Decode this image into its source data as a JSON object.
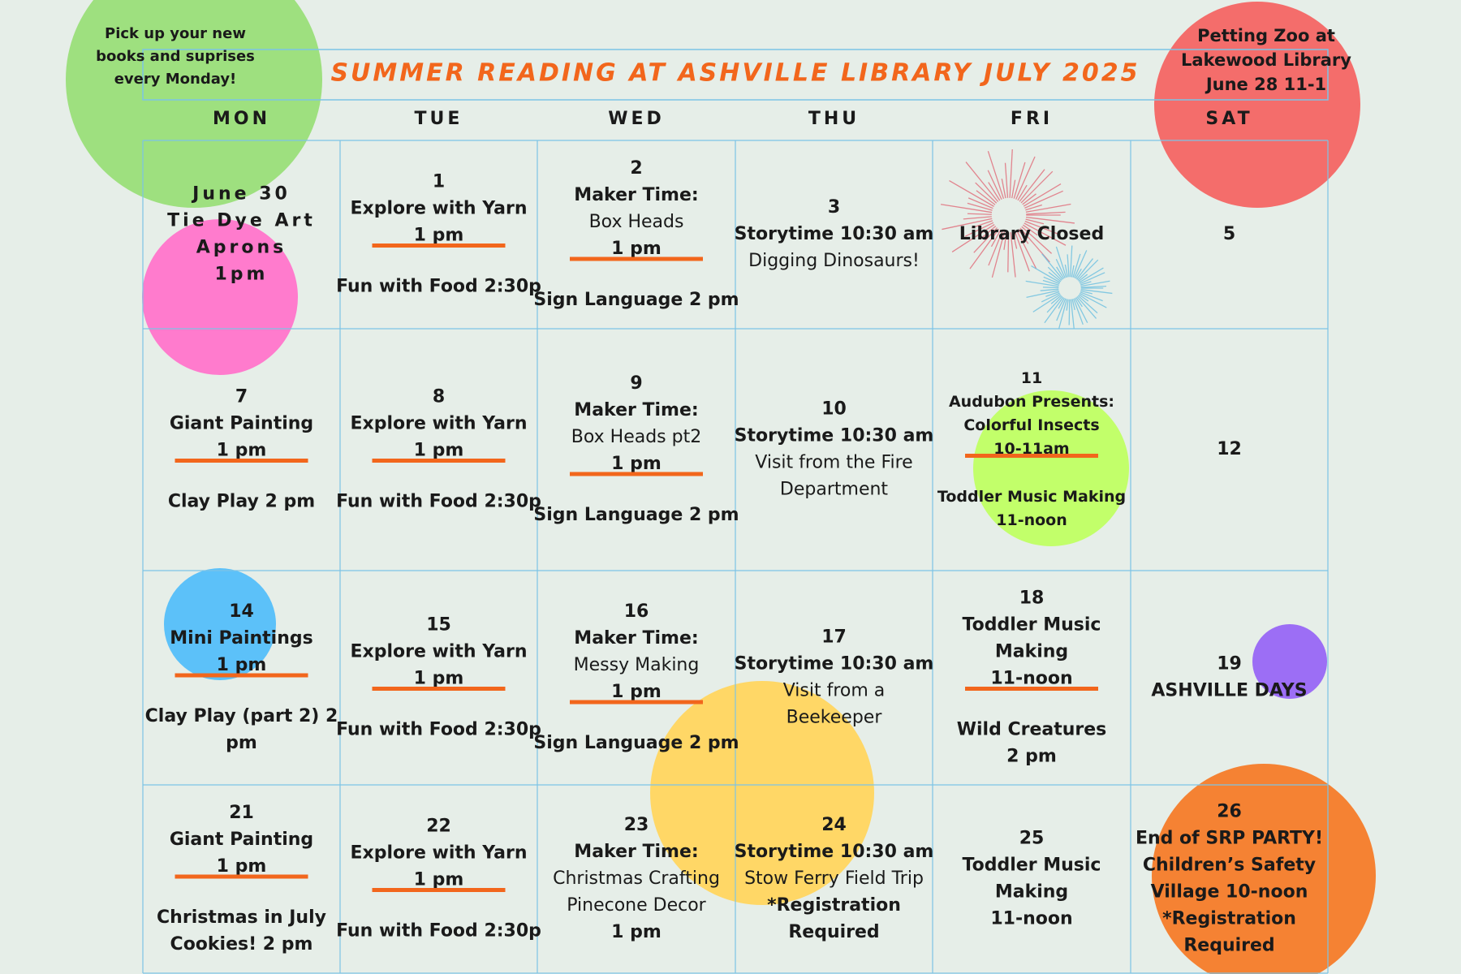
{
  "header": {
    "title": "SUMMER READING AT ASHVILLE LIBRARY JULY 2025"
  },
  "notes": {
    "left": [
      "Pick up your new",
      "books and suprises",
      "every Monday!"
    ],
    "right": [
      "Petting Zoo at",
      "Lakewood Library",
      "June 28 11-1"
    ]
  },
  "calendar": {
    "days": [
      "MON",
      "TUE",
      "WED",
      "THU",
      "FRI",
      "SAT"
    ],
    "rows": [
      [
        [
          [
            "June 30",
            "Tie Dye Art",
            "Aprons",
            "1pm"
          ]
        ],
        [
          [
            "1",
            "Explore with Yarn",
            "1 pm"
          ],
          [
            "Fun with Food 2:30p"
          ]
        ],
        [
          [
            "2",
            "Maker Time:",
            "Box Heads",
            "1 pm"
          ],
          [
            "Sign Language 2 pm"
          ]
        ],
        [
          [
            "3",
            "Storytime 10:30 am",
            "Digging Dinosaurs!"
          ]
        ],
        [
          [
            "Library Closed"
          ]
        ],
        [
          [
            "5"
          ]
        ]
      ],
      [
        [
          [
            "7",
            "Giant Painting",
            "1 pm"
          ],
          [
            "Clay Play  2 pm"
          ]
        ],
        [
          [
            "8",
            "Explore with Yarn",
            "1 pm"
          ],
          [
            "Fun with Food 2:30p"
          ]
        ],
        [
          [
            "9",
            "Maker Time:",
            "Box Heads pt2",
            "1 pm"
          ],
          [
            "Sign Language 2 pm"
          ]
        ],
        [
          [
            "10",
            "Storytime 10:30 am",
            "Visit from the Fire",
            "Department"
          ]
        ],
        [
          [
            "11",
            "Audubon Presents:",
            "Colorful Insects",
            "10-11am"
          ],
          [
            "Toddler Music Making",
            "11-noon"
          ]
        ],
        [
          [
            "12"
          ]
        ]
      ],
      [
        [
          [
            "14",
            "Mini Paintings",
            "1 pm"
          ],
          [
            "Clay Play (part 2) 2",
            "pm"
          ]
        ],
        [
          [
            "15",
            "Explore with Yarn",
            "1 pm"
          ],
          [
            "Fun with Food 2:30p"
          ]
        ],
        [
          [
            "16",
            "Maker Time:",
            "Messy Making",
            "1 pm"
          ],
          [
            "Sign Language 2 pm"
          ]
        ],
        [
          [
            "17",
            "Storytime 10:30 am",
            "Visit from a",
            "Beekeeper"
          ]
        ],
        [
          [
            "18",
            "Toddler Music",
            "Making",
            "11-noon"
          ],
          [
            "Wild Creatures",
            "2 pm"
          ]
        ],
        [
          [
            "19",
            "ASHVILLE DAYS"
          ]
        ]
      ],
      [
        [
          [
            "21",
            "Giant Painting",
            "1 pm"
          ],
          [
            "Christmas in July",
            "Cookies! 2 pm"
          ]
        ],
        [
          [
            "22",
            "Explore with Yarn",
            "1 pm"
          ],
          [
            "Fun with Food 2:30p"
          ]
        ],
        [
          [
            "23",
            "Maker Time:",
            "Christmas Crafting",
            "Pinecone Decor",
            "1 pm"
          ]
        ],
        [
          [
            "24",
            "Storytime 10:30 am",
            "Stow Ferry Field Trip",
            "*Registration",
            "Required"
          ]
        ],
        [
          [
            "25",
            "Toddler Music",
            "Making",
            "11-noon"
          ]
        ],
        [
          [
            "26",
            "End of SRP PARTY!",
            "Children’s Safety",
            "Village 10-noon",
            "*Registration",
            "Required"
          ]
        ]
      ]
    ]
  }
}
